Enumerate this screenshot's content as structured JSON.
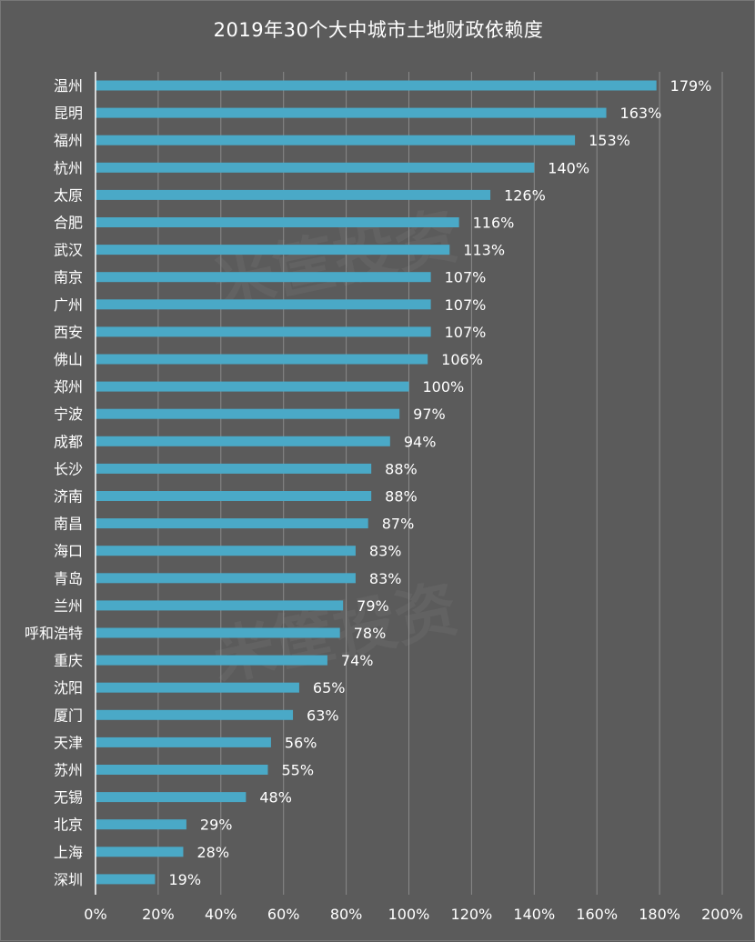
{
  "colors": {
    "background": "#5b5b5b",
    "bar": "#4aa9c7",
    "grid": "#8a8a8a",
    "axis": "#ffffff",
    "text": "#ffffff"
  },
  "chart_data": {
    "type": "bar",
    "orientation": "horizontal",
    "title": "2019年30个大中城市土地财政依赖度",
    "xlabel": "",
    "ylabel": "",
    "xlim": [
      0,
      200
    ],
    "x_ticks": [
      "0%",
      "20%",
      "40%",
      "60%",
      "80%",
      "100%",
      "120%",
      "140%",
      "160%",
      "180%",
      "200%"
    ],
    "grid": "vertical",
    "categories": [
      "温州",
      "昆明",
      "福州",
      "杭州",
      "太原",
      "合肥",
      "武汉",
      "南京",
      "广州",
      "西安",
      "佛山",
      "郑州",
      "宁波",
      "成都",
      "长沙",
      "济南",
      "南昌",
      "海口",
      "青岛",
      "兰州",
      "呼和浩特",
      "重庆",
      "沈阳",
      "厦门",
      "天津",
      "苏州",
      "无锡",
      "北京",
      "上海",
      "深圳"
    ],
    "values": [
      179,
      163,
      153,
      140,
      126,
      116,
      113,
      107,
      107,
      107,
      106,
      100,
      97,
      94,
      88,
      88,
      87,
      83,
      83,
      79,
      78,
      74,
      65,
      63,
      56,
      55,
      48,
      29,
      28,
      19
    ],
    "value_labels": [
      "179%",
      "163%",
      "153%",
      "140%",
      "126%",
      "116%",
      "113%",
      "107%",
      "107%",
      "107%",
      "106%",
      "100%",
      "97%",
      "94%",
      "88%",
      "88%",
      "87%",
      "83%",
      "83%",
      "79%",
      "78%",
      "74%",
      "65%",
      "63%",
      "56%",
      "55%",
      "48%",
      "29%",
      "28%",
      "19%"
    ]
  }
}
